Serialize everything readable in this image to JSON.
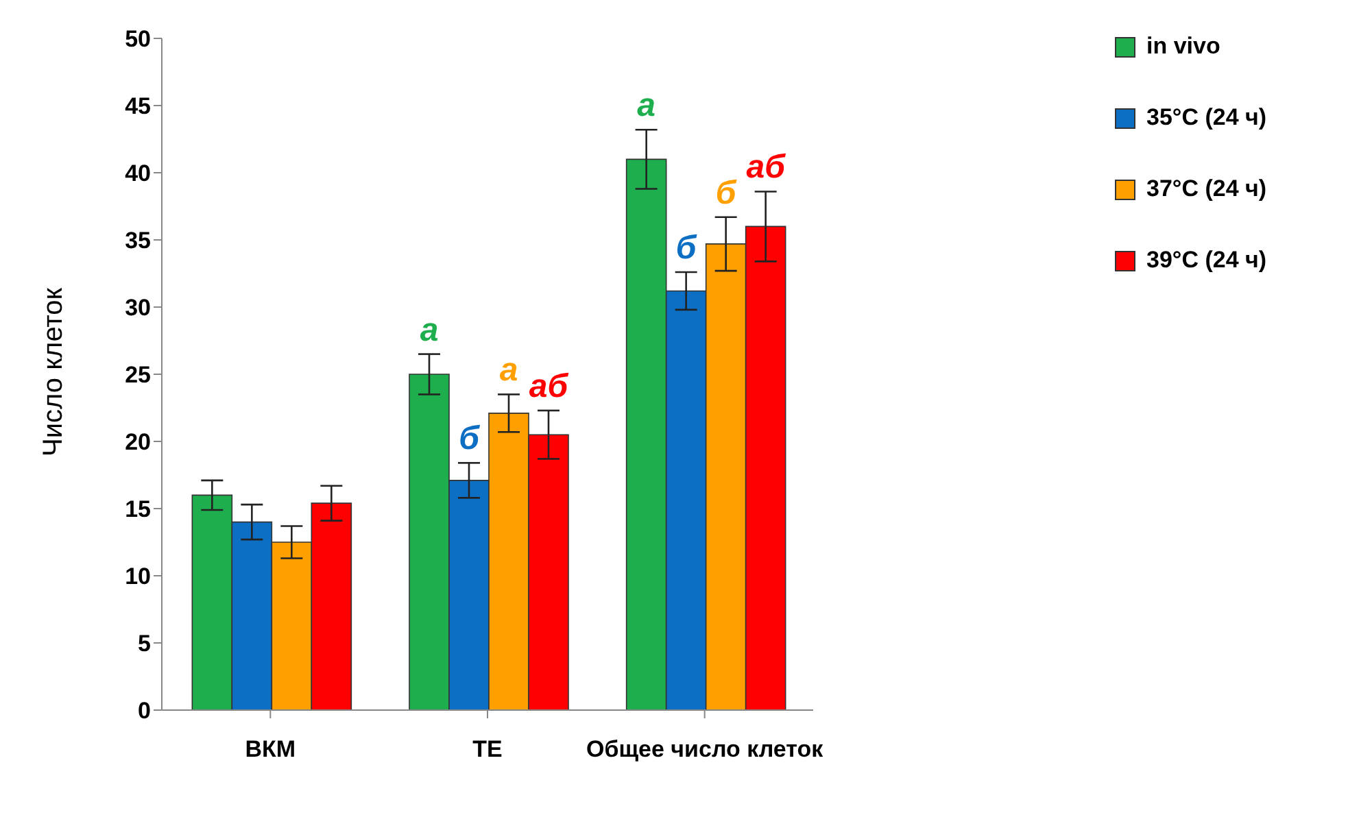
{
  "chart_data": {
    "type": "bar",
    "ylabel": "Число клеток",
    "categories": [
      "ВКМ",
      "ТЕ",
      "Общее число клеток"
    ],
    "series": [
      {
        "name": "in vivo",
        "color": "#1fae4e",
        "values": [
          16,
          25,
          41
        ],
        "errors": [
          1.1,
          1.5,
          2.2
        ],
        "value_labels": [
          null,
          "а",
          "а"
        ]
      },
      {
        "name": "35°C (24 ч)",
        "color": "#0d6fc4",
        "values": [
          14,
          17.1,
          31.2
        ],
        "errors": [
          1.3,
          1.3,
          1.4
        ],
        "value_labels": [
          null,
          "б",
          "б"
        ]
      },
      {
        "name": "37°C (24 ч)",
        "color": "#ffa000",
        "values": [
          12.5,
          22.1,
          34.7
        ],
        "errors": [
          1.2,
          1.4,
          2
        ],
        "value_labels": [
          null,
          "а",
          "б"
        ]
      },
      {
        "name": "39°C (24 ч)",
        "color": "#ff0000",
        "values": [
          15.4,
          20.5,
          36
        ],
        "errors": [
          1.3,
          1.8,
          2.6
        ],
        "value_labels": [
          null,
          "аб",
          "аб"
        ]
      }
    ],
    "ylim": [
      0,
      50
    ],
    "yticks": [
      0,
      5,
      10,
      15,
      20,
      25,
      30,
      35,
      40,
      45,
      50
    ],
    "grid": false,
    "legend": "top right"
  }
}
